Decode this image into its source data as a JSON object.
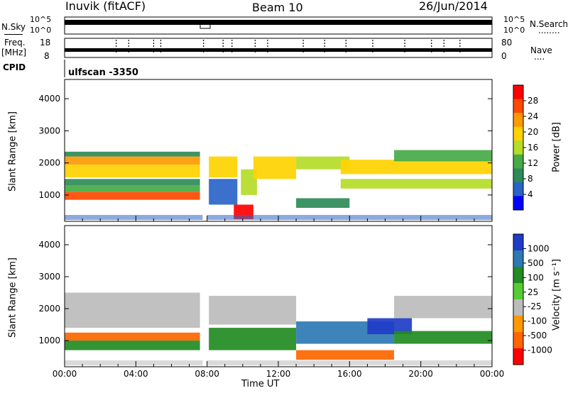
{
  "header": {
    "station": "Inuvik (fitACF)",
    "beam": "Beam 10",
    "date": "26/Jun/2014"
  },
  "nsky_panel": {
    "left_label": "N.Sky",
    "right_label": "N.Search",
    "right_marker": "........",
    "y_ticks_left": [
      "10^5",
      "10^0"
    ],
    "y_ticks_right": [
      "10^5",
      "10^0"
    ]
  },
  "freq_panel": {
    "left_label_top": "Freq.",
    "left_label_units": "[MHz]",
    "right_label": "Nave",
    "right_marker": "....",
    "y_ticks_left": [
      "18",
      "8"
    ],
    "y_ticks_right": [
      "80",
      "0"
    ]
  },
  "cpid_panel": {
    "label": "CPID",
    "program": "ulfscan -3350"
  },
  "power_panel": {
    "ylabel": "Slant Range [km]",
    "colorbar_label": "Power [dB]",
    "colorbar_ticks": [
      "28",
      "24",
      "20",
      "16",
      "12",
      "8",
      "4"
    ],
    "colorbar_colors": [
      "#ff0000",
      "#ff4a00",
      "#ff9900",
      "#ffd200",
      "#b4dc28",
      "#46aa46",
      "#2e8b57",
      "#2a64c8",
      "#0000ff"
    ]
  },
  "velocity_panel": {
    "ylabel": "Slant Range [km]",
    "colorbar_label": "Velocity [m s⁻¹]",
    "colorbar_ticks": [
      "1000",
      "500",
      "100",
      "25",
      "-25",
      "-100",
      "-500",
      "-1000"
    ],
    "colorbar_colors": [
      "#1e3cc8",
      "#2e78b4",
      "#228b22",
      "#55cc33",
      "#bcbcbc",
      "#ff9900",
      "#ff6600",
      "#ff0000"
    ]
  },
  "x_axis": {
    "label": "Time UT",
    "ticks": [
      "00:00",
      "04:00",
      "08:00",
      "12:00",
      "16:00",
      "20:00",
      "00:00"
    ]
  },
  "chart_data": [
    {
      "type": "heatmap",
      "title": "Power",
      "xlabel": "Time UT",
      "ylabel": "Slant Range [km]",
      "x_range_hours": [
        0,
        24
      ],
      "ylim": [
        180,
        4600
      ],
      "y_ticks": [
        1000,
        2000,
        3000,
        4000
      ],
      "colorbar": {
        "label": "Power [dB]",
        "range": [
          0,
          32
        ],
        "ticks": [
          4,
          8,
          12,
          16,
          20,
          24,
          28
        ]
      },
      "data_gap_hours": [
        7.75,
        8.0
      ],
      "regions": [
        {
          "t": [
            0.0,
            7.6
          ],
          "r": [
            850,
            1100
          ],
          "p": 26
        },
        {
          "t": [
            0.0,
            7.6
          ],
          "r": [
            1100,
            1300
          ],
          "p": 10
        },
        {
          "t": [
            0.0,
            7.6
          ],
          "r": [
            1300,
            1500
          ],
          "p": 8
        },
        {
          "t": [
            0.0,
            7.6
          ],
          "r": [
            1550,
            1950
          ],
          "p": 18
        },
        {
          "t": [
            0.0,
            7.6
          ],
          "r": [
            1950,
            2200
          ],
          "p": 20
        },
        {
          "t": [
            0.0,
            7.6
          ],
          "r": [
            2200,
            2350
          ],
          "p": 8
        },
        {
          "t": [
            8.1,
            9.7
          ],
          "r": [
            1550,
            2200
          ],
          "p": 16
        },
        {
          "t": [
            8.1,
            9.7
          ],
          "r": [
            700,
            1500
          ],
          "p": 7
        },
        {
          "t": [
            9.5,
            10.6
          ],
          "r": [
            250,
            700
          ],
          "p": 30
        },
        {
          "t": [
            9.9,
            10.8
          ],
          "r": [
            1000,
            1800
          ],
          "p": 15
        },
        {
          "t": [
            10.6,
            13.0
          ],
          "r": [
            1500,
            2200
          ],
          "p": 18
        },
        {
          "t": [
            13.0,
            16.0
          ],
          "r": [
            1800,
            2200
          ],
          "p": 12
        },
        {
          "t": [
            13.0,
            16.0
          ],
          "r": [
            600,
            900
          ],
          "p": 8
        },
        {
          "t": [
            15.5,
            24.0
          ],
          "r": [
            1200,
            1500
          ],
          "p": 12
        },
        {
          "t": [
            15.5,
            24.0
          ],
          "r": [
            1650,
            2100
          ],
          "p": 16
        },
        {
          "t": [
            18.5,
            24.0
          ],
          "r": [
            2050,
            2400
          ],
          "p": 10
        }
      ]
    },
    {
      "type": "heatmap",
      "title": "Velocity",
      "xlabel": "Time UT",
      "ylabel": "Slant Range [km]",
      "x_range_hours": [
        0,
        24
      ],
      "ylim": [
        180,
        4600
      ],
      "y_ticks": [
        1000,
        2000,
        3000,
        4000
      ],
      "colorbar": {
        "label": "Velocity [m s⁻¹]",
        "ticks": [
          1000,
          500,
          100,
          25,
          -25,
          -100,
          -500,
          -1000
        ]
      },
      "data_gap_hours": [
        7.75,
        8.0
      ],
      "regions": [
        {
          "t": [
            0.0,
            7.6
          ],
          "r": [
            1000,
            1250
          ],
          "v": -300
        },
        {
          "t": [
            0.0,
            7.6
          ],
          "r": [
            700,
            1000
          ],
          "v": 200
        },
        {
          "t": [
            0.0,
            7.6
          ],
          "r": [
            1400,
            2500
          ],
          "v": 0
        },
        {
          "t": [
            8.1,
            13.0
          ],
          "r": [
            1500,
            2400
          ],
          "v": 0
        },
        {
          "t": [
            8.1,
            13.0
          ],
          "r": [
            700,
            1400
          ],
          "v": 80
        },
        {
          "t": [
            13.0,
            18.5
          ],
          "r": [
            400,
            700
          ],
          "v": -300
        },
        {
          "t": [
            13.0,
            18.5
          ],
          "r": [
            900,
            1600
          ],
          "v": 300
        },
        {
          "t": [
            17.0,
            19.5
          ],
          "r": [
            1200,
            1700
          ],
          "v": 800
        },
        {
          "t": [
            18.5,
            24.0
          ],
          "r": [
            1700,
            2400
          ],
          "v": 0
        },
        {
          "t": [
            18.5,
            24.0
          ],
          "r": [
            900,
            1300
          ],
          "v": 150
        }
      ]
    }
  ]
}
